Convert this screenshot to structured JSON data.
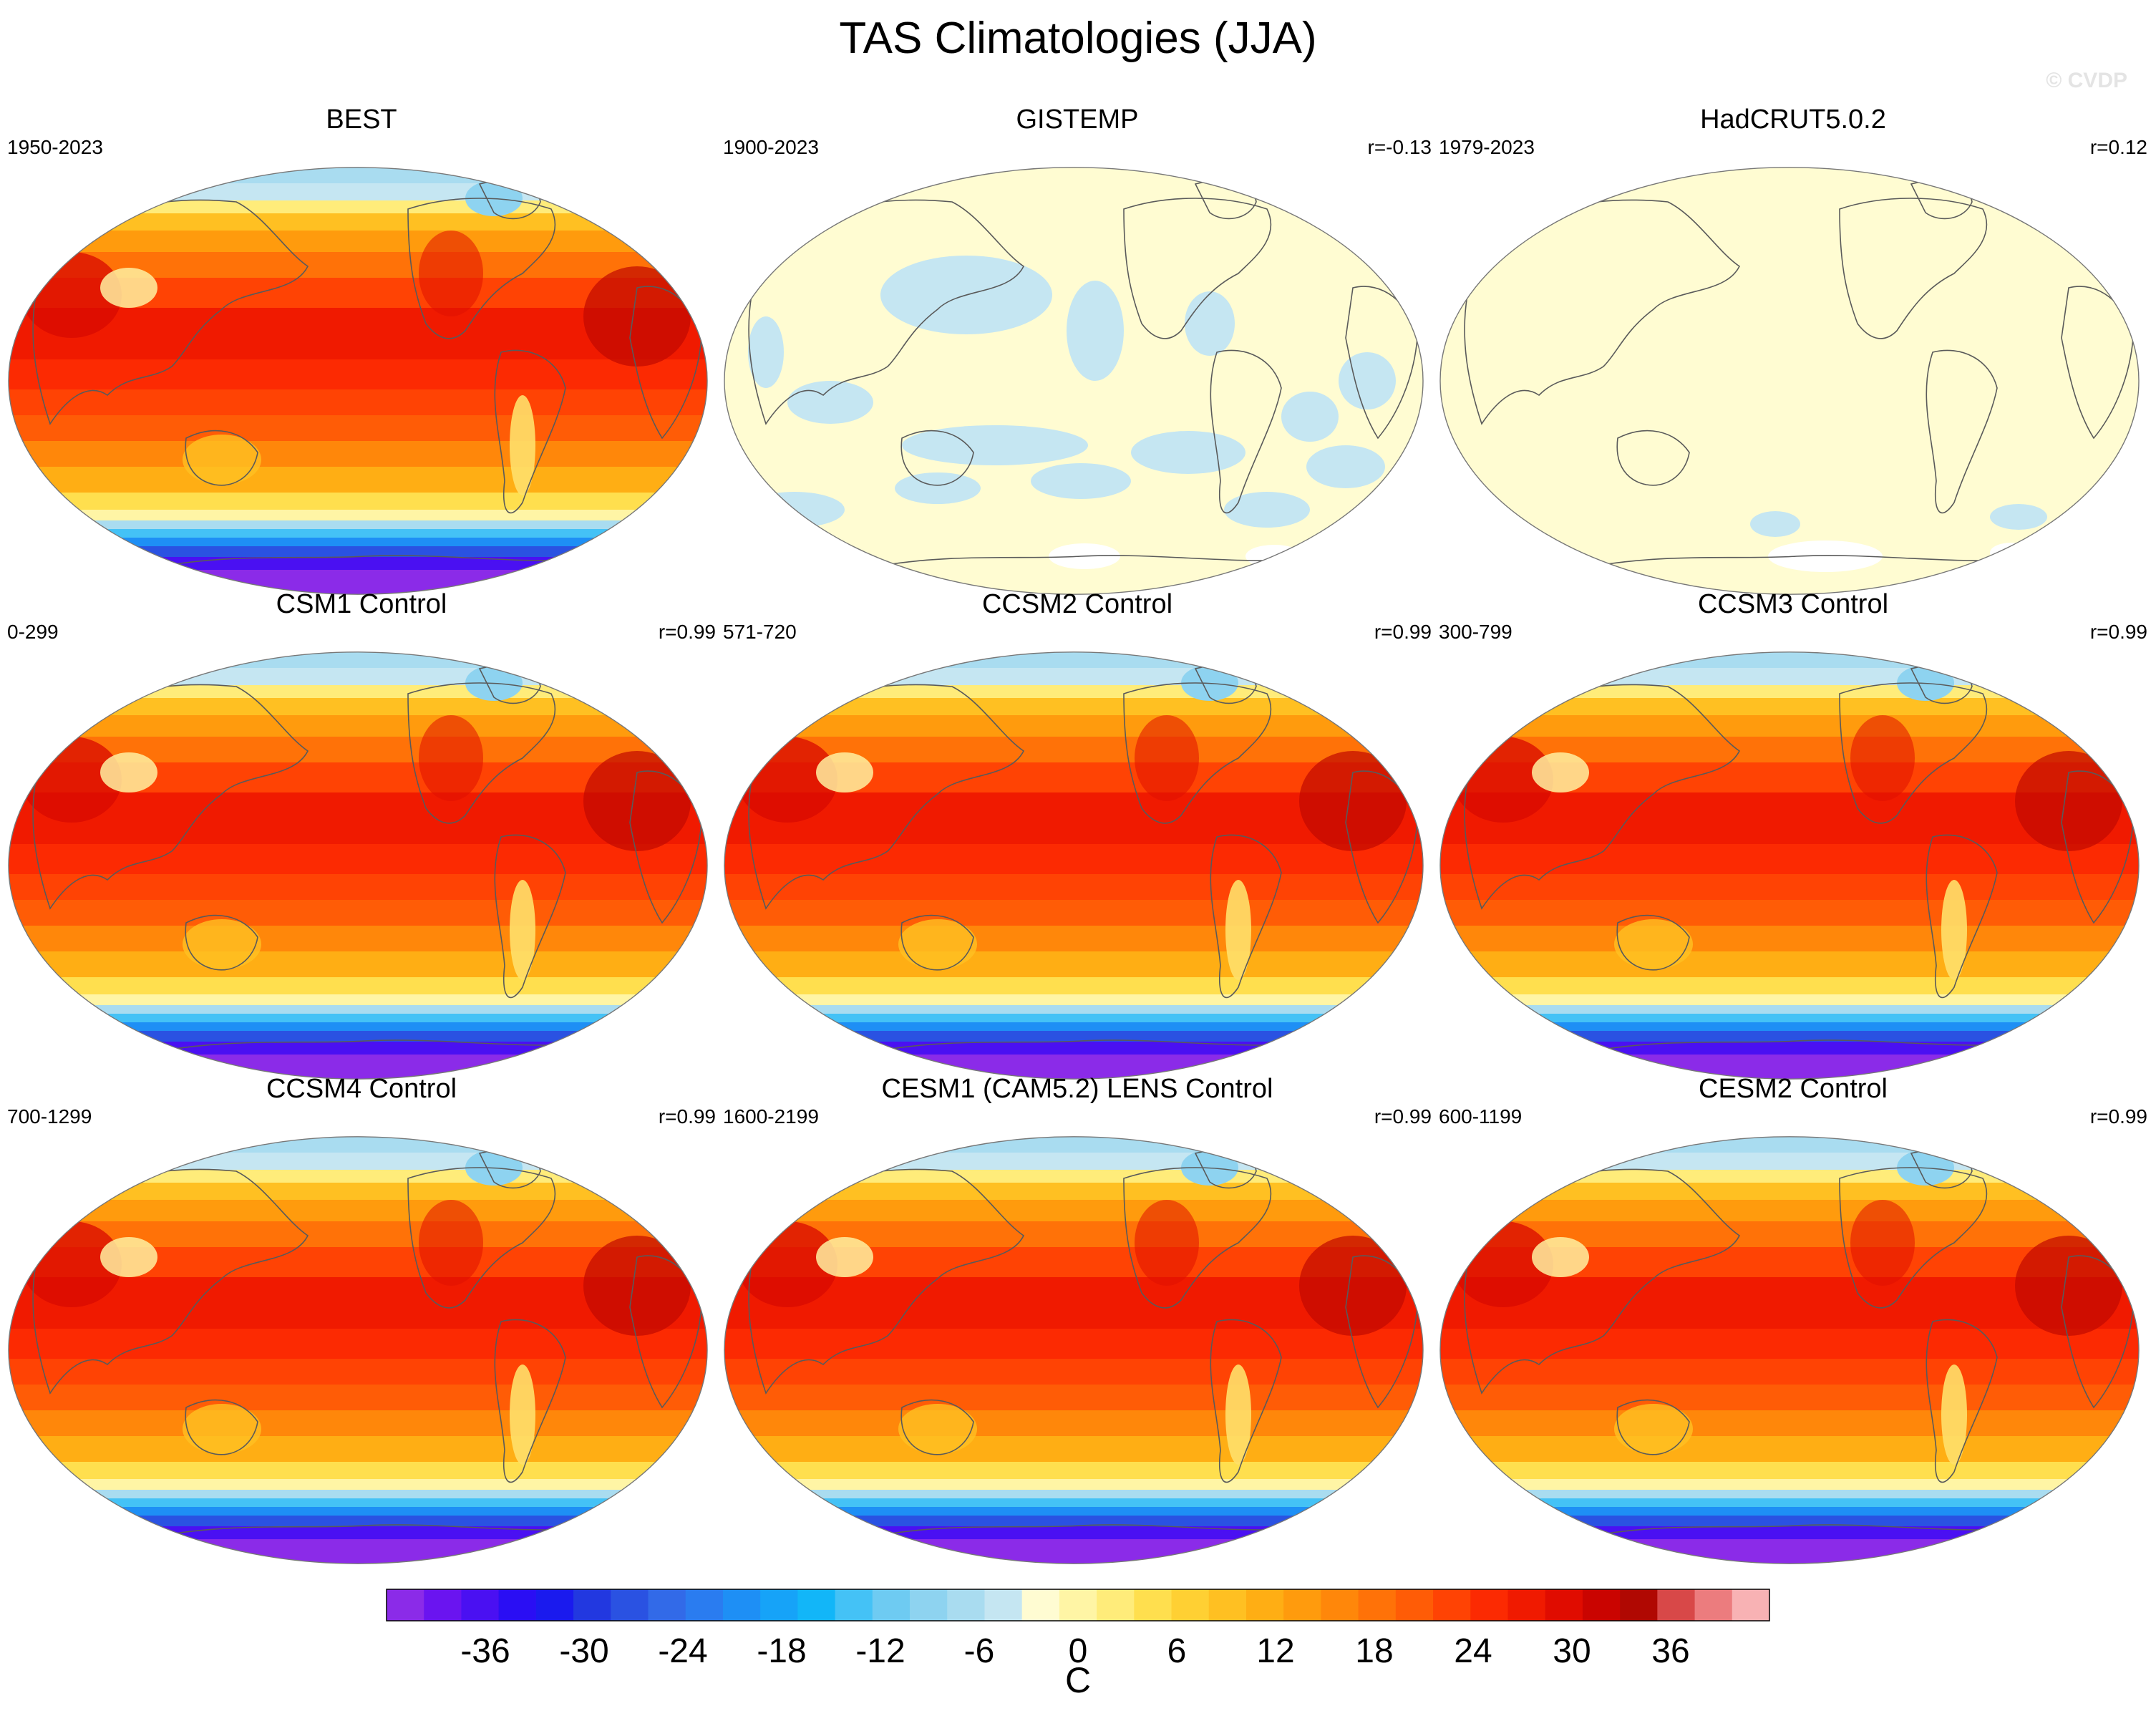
{
  "title": "TAS Climatologies (JJA)",
  "watermark": "© CVDP",
  "panels": [
    {
      "title": "BEST",
      "period": "1950-2023",
      "r": "",
      "field": "full"
    },
    {
      "title": "GISTEMP",
      "period": "1900-2023",
      "r": "r=-0.13",
      "field": "anomaly"
    },
    {
      "title": "HadCRUT5.0.2",
      "period": "1979-2023",
      "r": "r=0.12",
      "field": "flat"
    },
    {
      "title": "CSM1 Control",
      "period": "0-299",
      "r": "r=0.99",
      "field": "full"
    },
    {
      "title": "CCSM2 Control",
      "period": "571-720",
      "r": "r=0.99",
      "field": "full"
    },
    {
      "title": "CCSM3 Control",
      "period": "300-799",
      "r": "r=0.99",
      "field": "full"
    },
    {
      "title": "CCSM4 Control",
      "period": "700-1299",
      "r": "r=0.99",
      "field": "full"
    },
    {
      "title": "CESM1 (CAM5.2) LENS Control",
      "period": "1600-2199",
      "r": "r=0.99",
      "field": "full"
    },
    {
      "title": "CESM2 Control",
      "period": "600-1199",
      "r": "r=0.99",
      "field": "full"
    }
  ],
  "colorbar": {
    "min": -42,
    "max": 42,
    "step": 2,
    "ticks": [
      -36,
      -30,
      -24,
      -18,
      -12,
      -6,
      0,
      6,
      12,
      18,
      24,
      30,
      36
    ],
    "unit": "C",
    "colors": [
      "#8b2be8",
      "#6a14f0",
      "#4a10f2",
      "#2a0ef4",
      "#1a1aee",
      "#2238e0",
      "#2a52e2",
      "#326ae8",
      "#2a7cf0",
      "#1e8ff5",
      "#16a3f8",
      "#12b6f8",
      "#44c2f6",
      "#6ecbf2",
      "#8ed3f0",
      "#a9dcf0",
      "#c5e6f2",
      "#fffcd2",
      "#fff5a5",
      "#ffec7a",
      "#ffdf4e",
      "#ffd033",
      "#ffc022",
      "#ffae14",
      "#ff9b0d",
      "#ff870a",
      "#ff7208",
      "#ff5c06",
      "#ff4304",
      "#fc2a02",
      "#f01a00",
      "#e00c00",
      "#ca0400",
      "#b00802",
      "#d84848",
      "#ec7c7e",
      "#f8b2b4"
    ]
  }
}
